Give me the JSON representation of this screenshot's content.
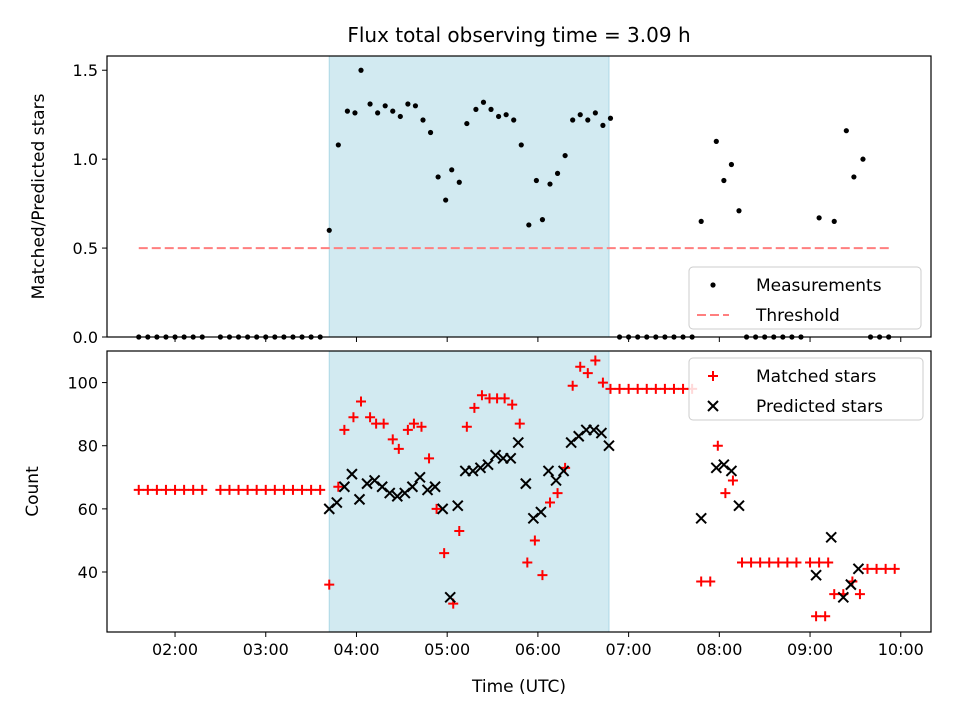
{
  "title": "Flux total observing time = 3.09 h",
  "xlabel": "Time (UTC)",
  "x_ticks": [
    "02:00",
    "03:00",
    "04:00",
    "05:00",
    "06:00",
    "07:00",
    "08:00",
    "09:00",
    "10:00"
  ],
  "colors": {
    "band": "#add8e6",
    "measure": "#000000",
    "threshold": "#ff7f7f",
    "matched": "#ff0000",
    "predicted": "#000000"
  },
  "chart_data": [
    {
      "type": "scatter",
      "ylabel": "Matched/Predicted stars",
      "xlim": [
        "01:15",
        "10:20"
      ],
      "ylim": [
        0,
        1.58
      ],
      "y_ticks": [
        "0.0",
        "0.5",
        "1.0",
        "1.5"
      ],
      "shaded_interval": [
        "03:42",
        "06:47"
      ],
      "legend": {
        "position": "lower-right",
        "entries": [
          "Measurements",
          "Threshold"
        ]
      },
      "threshold": {
        "name": "Threshold",
        "value": 0.5,
        "x_range": [
          "01:36",
          "09:54"
        ]
      },
      "series": [
        {
          "name": "Measurements",
          "points": [
            [
              "01:36",
              0
            ],
            [
              "01:42",
              0
            ],
            [
              "01:48",
              0
            ],
            [
              "01:54",
              0
            ],
            [
              "02:00",
              0
            ],
            [
              "02:06",
              0
            ],
            [
              "02:12",
              0
            ],
            [
              "02:18",
              0
            ],
            [
              "02:30",
              0
            ],
            [
              "02:36",
              0
            ],
            [
              "02:42",
              0
            ],
            [
              "02:48",
              0
            ],
            [
              "02:54",
              0
            ],
            [
              "03:00",
              0
            ],
            [
              "03:06",
              0
            ],
            [
              "03:12",
              0
            ],
            [
              "03:18",
              0
            ],
            [
              "03:24",
              0
            ],
            [
              "03:30",
              0
            ],
            [
              "03:36",
              0
            ],
            [
              "03:42",
              0.6
            ],
            [
              "03:48",
              1.08
            ],
            [
              "03:54",
              1.27
            ],
            [
              "03:59",
              1.26
            ],
            [
              "04:03",
              1.5
            ],
            [
              "04:09",
              1.31
            ],
            [
              "04:14",
              1.26
            ],
            [
              "04:19",
              1.3
            ],
            [
              "04:24",
              1.27
            ],
            [
              "04:29",
              1.24
            ],
            [
              "04:34",
              1.31
            ],
            [
              "04:39",
              1.3
            ],
            [
              "04:44",
              1.22
            ],
            [
              "04:49",
              1.15
            ],
            [
              "04:54",
              0.9
            ],
            [
              "04:59",
              0.77
            ],
            [
              "05:03",
              0.94
            ],
            [
              "05:08",
              0.87
            ],
            [
              "05:13",
              1.2
            ],
            [
              "05:19",
              1.28
            ],
            [
              "05:24",
              1.32
            ],
            [
              "05:29",
              1.28
            ],
            [
              "05:34",
              1.24
            ],
            [
              "05:39",
              1.25
            ],
            [
              "05:44",
              1.22
            ],
            [
              "05:49",
              1.08
            ],
            [
              "05:54",
              0.63
            ],
            [
              "05:59",
              0.88
            ],
            [
              "06:03",
              0.66
            ],
            [
              "06:08",
              0.86
            ],
            [
              "06:13",
              0.92
            ],
            [
              "06:18",
              1.02
            ],
            [
              "06:23",
              1.22
            ],
            [
              "06:28",
              1.25
            ],
            [
              "06:33",
              1.22
            ],
            [
              "06:38",
              1.26
            ],
            [
              "06:43",
              1.19
            ],
            [
              "06:48",
              1.23
            ],
            [
              "06:54",
              0
            ],
            [
              "07:00",
              0
            ],
            [
              "07:06",
              0
            ],
            [
              "07:12",
              0
            ],
            [
              "07:18",
              0
            ],
            [
              "07:24",
              0
            ],
            [
              "07:30",
              0
            ],
            [
              "07:36",
              0
            ],
            [
              "07:42",
              0
            ],
            [
              "07:48",
              0.65
            ],
            [
              "07:58",
              1.1
            ],
            [
              "08:03",
              0.88
            ],
            [
              "08:08",
              0.97
            ],
            [
              "08:13",
              0.71
            ],
            [
              "08:18",
              0
            ],
            [
              "08:24",
              0
            ],
            [
              "08:30",
              0
            ],
            [
              "08:36",
              0
            ],
            [
              "08:42",
              0
            ],
            [
              "08:48",
              0
            ],
            [
              "08:54",
              0
            ],
            [
              "09:06",
              0.67
            ],
            [
              "09:16",
              0.65
            ],
            [
              "09:24",
              1.16
            ],
            [
              "09:29",
              0.9
            ],
            [
              "09:35",
              1.0
            ],
            [
              "09:40",
              0
            ],
            [
              "09:46",
              0
            ],
            [
              "09:52",
              0
            ]
          ]
        }
      ]
    },
    {
      "type": "scatter",
      "ylabel": "Count",
      "xlim": [
        "01:15",
        "10:20"
      ],
      "ylim": [
        21,
        110
      ],
      "y_ticks": [
        "40",
        "60",
        "80",
        "100"
      ],
      "shaded_interval": [
        "03:42",
        "06:47"
      ],
      "legend": {
        "position": "top-right",
        "entries": [
          "Matched stars",
          "Predicted stars"
        ]
      },
      "series": [
        {
          "name": "Matched stars",
          "marker": "plus",
          "points": [
            [
              "01:36",
              66
            ],
            [
              "01:42",
              66
            ],
            [
              "01:48",
              66
            ],
            [
              "01:54",
              66
            ],
            [
              "02:00",
              66
            ],
            [
              "02:06",
              66
            ],
            [
              "02:12",
              66
            ],
            [
              "02:18",
              66
            ],
            [
              "02:30",
              66
            ],
            [
              "02:36",
              66
            ],
            [
              "02:42",
              66
            ],
            [
              "02:48",
              66
            ],
            [
              "02:54",
              66
            ],
            [
              "03:00",
              66
            ],
            [
              "03:06",
              66
            ],
            [
              "03:12",
              66
            ],
            [
              "03:18",
              66
            ],
            [
              "03:24",
              66
            ],
            [
              "03:30",
              66
            ],
            [
              "03:36",
              66
            ],
            [
              "03:42",
              36
            ],
            [
              "03:48",
              67
            ],
            [
              "03:52",
              85
            ],
            [
              "03:58",
              89
            ],
            [
              "04:03",
              94
            ],
            [
              "04:09",
              89
            ],
            [
              "04:13",
              87
            ],
            [
              "04:18",
              87
            ],
            [
              "04:24",
              82
            ],
            [
              "04:28",
              79
            ],
            [
              "04:34",
              85
            ],
            [
              "04:38",
              87
            ],
            [
              "04:43",
              86
            ],
            [
              "04:48",
              76
            ],
            [
              "04:53",
              60
            ],
            [
              "04:58",
              46
            ],
            [
              "05:04",
              30
            ],
            [
              "05:08",
              53
            ],
            [
              "05:13",
              86
            ],
            [
              "05:18",
              92
            ],
            [
              "05:23",
              96
            ],
            [
              "05:28",
              95
            ],
            [
              "05:33",
              95
            ],
            [
              "05:38",
              95
            ],
            [
              "05:43",
              93
            ],
            [
              "05:48",
              87
            ],
            [
              "05:53",
              43
            ],
            [
              "05:58",
              50
            ],
            [
              "06:03",
              39
            ],
            [
              "06:08",
              62
            ],
            [
              "06:13",
              65
            ],
            [
              "06:18",
              73
            ],
            [
              "06:23",
              99
            ],
            [
              "06:28",
              105
            ],
            [
              "06:33",
              103
            ],
            [
              "06:38",
              107
            ],
            [
              "06:43",
              100
            ],
            [
              "06:48",
              98
            ],
            [
              "06:54",
              98
            ],
            [
              "07:00",
              98
            ],
            [
              "07:06",
              98
            ],
            [
              "07:12",
              98
            ],
            [
              "07:18",
              98
            ],
            [
              "07:24",
              98
            ],
            [
              "07:30",
              98
            ],
            [
              "07:36",
              98
            ],
            [
              "07:42",
              98
            ],
            [
              "07:48",
              37
            ],
            [
              "07:54",
              37
            ],
            [
              "07:59",
              80
            ],
            [
              "08:04",
              65
            ],
            [
              "08:09",
              69
            ],
            [
              "08:15",
              43
            ],
            [
              "08:21",
              43
            ],
            [
              "08:27",
              43
            ],
            [
              "08:33",
              43
            ],
            [
              "08:39",
              43
            ],
            [
              "08:45",
              43
            ],
            [
              "08:51",
              43
            ],
            [
              "09:00",
              43
            ],
            [
              "09:06",
              43
            ],
            [
              "09:12",
              43
            ],
            [
              "09:04",
              26
            ],
            [
              "09:10",
              26
            ],
            [
              "09:16",
              33
            ],
            [
              "09:22",
              33
            ],
            [
              "09:28",
              37
            ],
            [
              "09:33",
              33
            ],
            [
              "09:38",
              41
            ],
            [
              "09:44",
              41
            ],
            [
              "09:50",
              41
            ],
            [
              "09:56",
              41
            ]
          ]
        },
        {
          "name": "Predicted stars",
          "marker": "x",
          "points": [
            [
              "03:42",
              60
            ],
            [
              "03:47",
              62
            ],
            [
              "03:52",
              67
            ],
            [
              "03:57",
              71
            ],
            [
              "04:02",
              63
            ],
            [
              "04:07",
              68
            ],
            [
              "04:12",
              69
            ],
            [
              "04:17",
              67
            ],
            [
              "04:22",
              65
            ],
            [
              "04:27",
              64
            ],
            [
              "04:32",
              65
            ],
            [
              "04:37",
              67
            ],
            [
              "04:42",
              70
            ],
            [
              "04:47",
              66
            ],
            [
              "04:52",
              67
            ],
            [
              "04:57",
              60
            ],
            [
              "05:02",
              32
            ],
            [
              "05:07",
              61
            ],
            [
              "05:12",
              72
            ],
            [
              "05:17",
              72
            ],
            [
              "05:22",
              73
            ],
            [
              "05:27",
              74
            ],
            [
              "05:32",
              77
            ],
            [
              "05:37",
              76
            ],
            [
              "05:42",
              76
            ],
            [
              "05:47",
              81
            ],
            [
              "05:52",
              68
            ],
            [
              "05:57",
              57
            ],
            [
              "06:02",
              59
            ],
            [
              "06:07",
              72
            ],
            [
              "06:12",
              69
            ],
            [
              "06:17",
              72
            ],
            [
              "06:22",
              81
            ],
            [
              "06:27",
              83
            ],
            [
              "06:32",
              85
            ],
            [
              "06:37",
              85
            ],
            [
              "06:42",
              84
            ],
            [
              "06:47",
              80
            ],
            [
              "07:48",
              57
            ],
            [
              "07:58",
              73
            ],
            [
              "08:03",
              74
            ],
            [
              "08:08",
              72
            ],
            [
              "08:13",
              61
            ],
            [
              "09:04",
              39
            ],
            [
              "09:14",
              51
            ],
            [
              "09:22",
              32
            ],
            [
              "09:27",
              36
            ],
            [
              "09:32",
              41
            ]
          ]
        }
      ]
    }
  ]
}
